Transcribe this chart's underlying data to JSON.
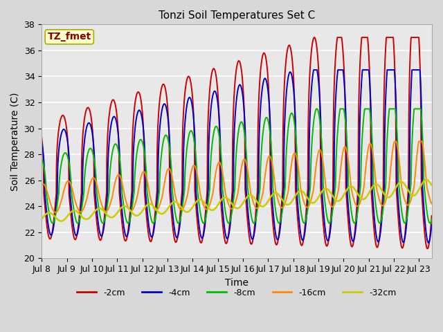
{
  "title": "Tonzi Soil Temperatures Set C",
  "xlabel": "Time",
  "ylabel": "Soil Temperature (C)",
  "ylim": [
    20,
    38
  ],
  "bg_color": "#d8d8d8",
  "plot_bg": "#e8e8e8",
  "annotation_text": "TZ_fmet",
  "annotation_bg": "#ffffcc",
  "annotation_border": "#aaaa00",
  "annotation_text_color": "#880000",
  "legend_labels": [
    "-2cm",
    "-4cm",
    "-8cm",
    "-16cm",
    "-32cm"
  ],
  "line_colors": [
    "#cc0000",
    "#0000cc",
    "#00bb00",
    "#ff8800",
    "#cccc00"
  ],
  "line_widths": [
    1.4,
    1.4,
    1.4,
    1.4,
    1.8
  ],
  "tick_labels": [
    "Jul 8",
    "Jul 9",
    "Jul 10",
    "Jul 11",
    "Jul 12",
    "Jul 13",
    "Jul 14",
    "Jul 15",
    "Jul 16",
    "Jul 17",
    "Jul 18",
    "Jul 19",
    "Jul 20",
    "Jul 21",
    "Jul 22",
    "Jul 23"
  ],
  "n_days": 15.5,
  "start_day": 8
}
